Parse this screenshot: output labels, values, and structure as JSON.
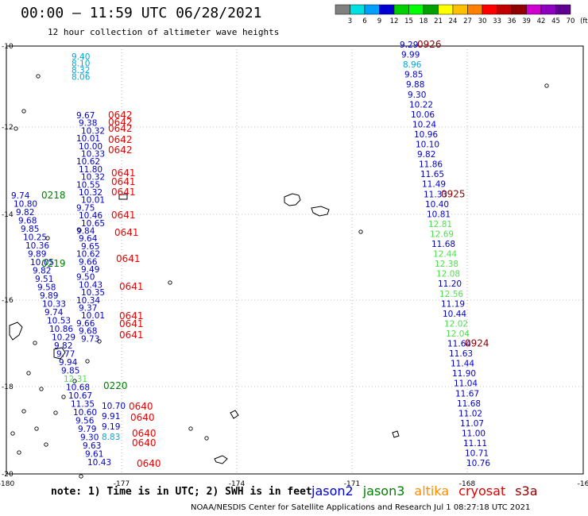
{
  "header": {
    "title": "00:00 – 11:59 UTC 06/28/2021",
    "subtitle": "12 hour collection of altimeter wave heights"
  },
  "color_scale": {
    "labels": [
      "3",
      "6",
      "9",
      "12",
      "15",
      "18",
      "21",
      "24",
      "27",
      "30",
      "33",
      "36",
      "39",
      "42",
      "45",
      "70",
      "(ft)"
    ],
    "colors": [
      "#808080",
      "#00e0e0",
      "#00a0ff",
      "#0000d0",
      "#00d000",
      "#00ff00",
      "#00a000",
      "#ffff00",
      "#ffc000",
      "#ff8000",
      "#ff0000",
      "#c00000",
      "#900000",
      "#d000d0",
      "#9000c0",
      "#600090"
    ]
  },
  "axes": {
    "lon_labels": [
      "-180",
      "-177",
      "-174",
      "-171",
      "-168",
      "-16"
    ],
    "lat_labels": [
      "-10",
      "-12",
      "-14",
      "-16",
      "-18",
      "-20"
    ]
  },
  "footer": {
    "note": "note: 1) Time is in UTC; 2) SWH is in feet",
    "credit": "NOAA/NESDIS Center for Satellite Applications and Research   Jul  1 08:27:18 UTC 2021",
    "satellites": [
      {
        "name": "jason2",
        "color": "#0000d0"
      },
      {
        "name": "jason3",
        "color": "#008000"
      },
      {
        "name": "altika",
        "color": "#ff8c00"
      },
      {
        "name": "cryosat",
        "color": "#e00000"
      },
      {
        "name": "s3a",
        "color": "#8b0000"
      }
    ]
  },
  "map_data": {
    "sat_colors": {
      "jason2": "#0000cc",
      "jason3": "#007f00",
      "cryosat": "#ee0000",
      "s3a": "#8b0000"
    },
    "level_colors": {
      "light_blue": "#00a8d8",
      "light_green": "#50e050",
      "dark_blue": "#0000cc"
    },
    "east_track": {
      "sat": "s3a",
      "values": [
        "9.29",
        "9.99",
        "8.96",
        "9.85",
        "9.88",
        "9.30",
        "10.22",
        "10.06",
        "10.24",
        "10.96",
        "10.10",
        "9.82",
        "11.86",
        "11.65",
        "11.49",
        "11.33",
        "10.40",
        "10.81",
        "12.81",
        "12.69",
        "11.68",
        "12.44",
        "12.38",
        "12.08",
        "11.20",
        "12.56",
        "11.19",
        "10.44",
        "12.02",
        "12.04",
        "11.64",
        "11.63",
        "11.44",
        "11.90",
        "11.04",
        "11.67",
        "11.68",
        "11.02",
        "11.07",
        "11.00",
        "11.11",
        "10.71",
        "10.76"
      ],
      "levels": [
        "dark_blue",
        "dark_blue",
        "light_blue",
        "dark_blue",
        "dark_blue",
        "dark_blue",
        "dark_blue",
        "dark_blue",
        "dark_blue",
        "dark_blue",
        "dark_blue",
        "dark_blue",
        "dark_blue",
        "dark_blue",
        "dark_blue",
        "dark_blue",
        "dark_blue",
        "dark_blue",
        "light_green",
        "light_green",
        "dark_blue",
        "light_green",
        "light_green",
        "light_green",
        "dark_blue",
        "light_green",
        "dark_blue",
        "dark_blue",
        "light_green",
        "light_green",
        "dark_blue",
        "dark_blue",
        "dark_blue",
        "dark_blue",
        "dark_blue",
        "dark_blue",
        "dark_blue",
        "dark_blue",
        "dark_blue",
        "dark_blue",
        "dark_blue",
        "dark_blue",
        "dark_blue"
      ],
      "times": [
        {
          "label": "0926",
          "index": 0
        },
        {
          "label": "0925",
          "index": 15
        },
        {
          "label": "0924",
          "index": 30
        }
      ]
    },
    "west_tracks": [
      {
        "values": [
          "9.40",
          "8.10",
          "8.32",
          "8.06"
        ],
        "levels": [
          "light_blue",
          "light_blue",
          "light_blue",
          "light_blue"
        ]
      },
      {
        "values": [
          "9.67",
          "9.38",
          "10.32",
          "10.01",
          "10.00",
          "10.33",
          "10.62",
          "11.80",
          "10.32",
          "10.55",
          "10.32",
          "10.01",
          "9.75",
          "10.46",
          "10.65",
          "9.84",
          "9.64",
          "9.65",
          "10.62",
          "9.66",
          "9.49",
          "9.50",
          "10.43",
          "10.35",
          "10.34",
          "9.37",
          "10.01",
          "9.66",
          "9.68",
          "9.73"
        ],
        "levels": []
      },
      {
        "values": [
          "9.74",
          "10.80",
          "9.82",
          "9.68",
          "9.85",
          "10.25",
          "10.36",
          "9.89",
          "10.05",
          "9.82",
          "9.51",
          "9.58",
          "9.89",
          "10.33",
          "9.74",
          "10.53",
          "10.86",
          "10.29",
          "9.82",
          "9.77",
          "9.94",
          "9.85",
          "12.31",
          "10.68",
          "10.67",
          "11.35",
          "10.60",
          "9.56",
          "9.79",
          "9.30",
          "9.63",
          "9.61",
          "10.43"
        ],
        "levels": []
      },
      {
        "values": [
          "10.70",
          "9.91",
          "9.19",
          "8.83"
        ],
        "levels": [
          "dark_blue",
          "dark_blue",
          "dark_blue",
          "light_blue"
        ]
      }
    ],
    "west_times": [
      {
        "label": "0642",
        "sat": "cryosat"
      },
      {
        "label": "0641",
        "sat": "cryosat"
      },
      {
        "label": "0640",
        "sat": "cryosat"
      },
      {
        "label": "0218",
        "sat": "jason3"
      },
      {
        "label": "0219",
        "sat": "jason3"
      },
      {
        "label": "0220",
        "sat": "jason3"
      }
    ]
  }
}
